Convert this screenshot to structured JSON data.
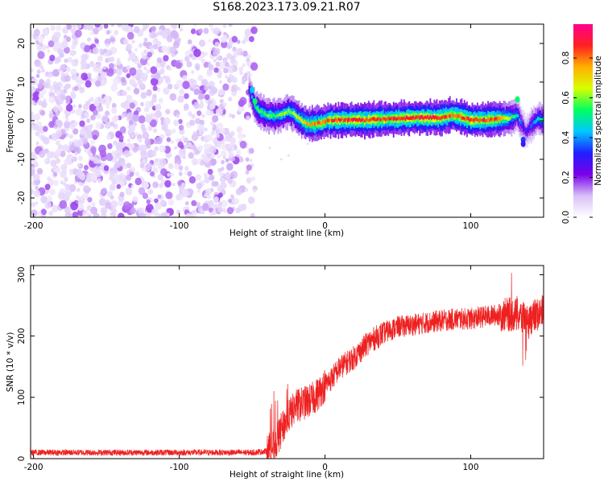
{
  "title": "S168.2023.173.09.21.R07",
  "chart_data": [
    {
      "type": "heatmap",
      "xlabel": "Height of straight line (km)",
      "ylabel": "Frequency (Hz)",
      "xlim": [
        -202,
        150
      ],
      "ylim": [
        -25,
        25
      ],
      "xticks": [
        -200,
        -100,
        0,
        100
      ],
      "yticks": [
        -20,
        -10,
        0,
        10,
        20
      ],
      "colorbar": {
        "label": "Normalized spectral amplitude",
        "range": [
          0,
          0.97
        ],
        "ticks": [
          0.0,
          0.2,
          0.4,
          0.6,
          0.8
        ],
        "colors": [
          "#ffffff",
          "#d8c0f8",
          "#7a00e8",
          "#2020ff",
          "#00c8ff",
          "#00ff60",
          "#d8ff00",
          "#ffb000",
          "#ff2020",
          "#ff0090"
        ]
      },
      "noise_region_x": [
        -202,
        -52
      ],
      "signal_ridge": {
        "x": [
          -52,
          -50,
          -48,
          -45,
          -40,
          -35,
          -30,
          -25,
          -22,
          -18,
          -14,
          -10,
          -6,
          -2,
          2,
          10,
          20,
          30,
          40,
          50,
          60,
          70,
          80,
          88,
          95,
          100,
          110,
          120,
          128,
          132,
          135,
          138,
          142,
          146,
          150
        ],
        "y": [
          8,
          6,
          3.5,
          2.5,
          1.5,
          1.2,
          1.5,
          2.5,
          2.0,
          0.5,
          -0.5,
          -1.0,
          -0.8,
          -0.5,
          0,
          0.2,
          0.2,
          0.2,
          0.4,
          0.5,
          0.8,
          0.8,
          0.8,
          1.5,
          0.8,
          0.2,
          0.2,
          0.5,
          0.8,
          1.5,
          -1.0,
          -3.0,
          -1.0,
          0.5,
          0
        ],
        "amplitude": [
          0.35,
          0.5,
          0.55,
          0.6,
          0.6,
          0.62,
          0.62,
          0.65,
          0.65,
          0.7,
          0.75,
          0.8,
          0.82,
          0.85,
          0.88,
          0.9,
          0.92,
          0.92,
          0.9,
          0.9,
          0.92,
          0.93,
          0.92,
          0.85,
          0.9,
          0.92,
          0.9,
          0.85,
          0.6,
          0.5,
          0.35,
          0.3,
          0.4,
          0.5,
          0.55
        ]
      }
    },
    {
      "type": "line",
      "xlabel": "Height of straight line (km)",
      "ylabel": "SNR (10 * v/v)",
      "xlim": [
        -202,
        150
      ],
      "ylim": [
        0,
        315
      ],
      "xticks": [
        -200,
        -100,
        0,
        100
      ],
      "yticks": [
        0,
        100,
        200,
        300
      ],
      "line_color": "#ee2020",
      "trend": {
        "x": [
          -202,
          -100,
          -50,
          -40,
          -35,
          -30,
          -25,
          -20,
          -15,
          -10,
          -5,
          0,
          5,
          10,
          20,
          30,
          40,
          50,
          60,
          70,
          80,
          90,
          100,
          110,
          120,
          130,
          140,
          150
        ],
        "y": [
          10,
          10,
          10,
          12,
          20,
          45,
          70,
          85,
          90,
          95,
          105,
          120,
          132,
          148,
          165,
          190,
          205,
          215,
          218,
          222,
          225,
          228,
          228,
          232,
          235,
          235,
          228,
          240
        ]
      }
    }
  ]
}
